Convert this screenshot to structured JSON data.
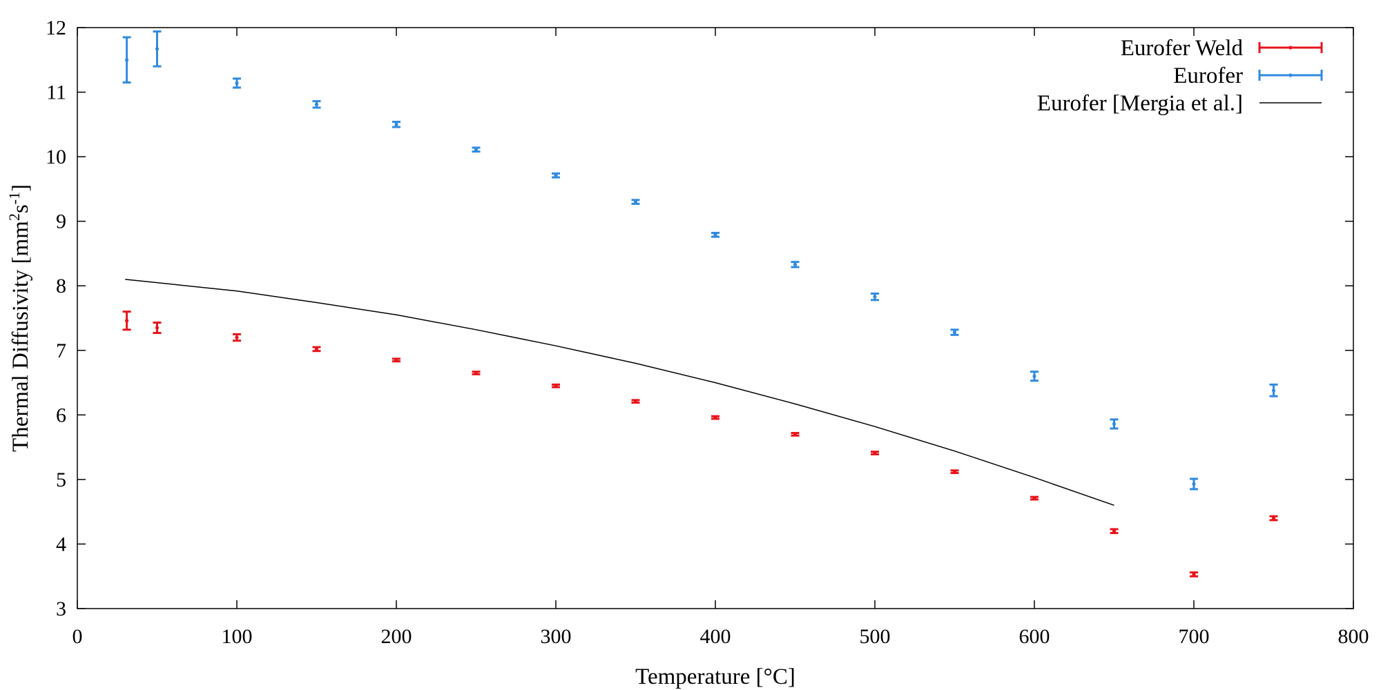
{
  "chart_data": {
    "type": "scatter",
    "xlabel": "Temperature [°C]",
    "ylabel": {
      "prefix": "Thermal Diffusivity [mm",
      "sup1": "2",
      "mid": "s",
      "sup2": "-1",
      "suffix": "]"
    },
    "xlim": [
      0,
      800
    ],
    "ylim": [
      3,
      12
    ],
    "x_ticks": [
      0,
      100,
      200,
      300,
      400,
      500,
      600,
      700,
      800
    ],
    "y_ticks": [
      3,
      4,
      5,
      6,
      7,
      8,
      9,
      10,
      11,
      12
    ],
    "grid": false,
    "legend_position": "top-right",
    "series": [
      {
        "name": "Eurofer Weld",
        "style": "points-errorbars",
        "color": "#e8141b",
        "x": [
          31,
          50,
          100,
          150,
          200,
          250,
          300,
          350,
          400,
          450,
          500,
          550,
          600,
          650,
          700,
          750
        ],
        "y": [
          7.46,
          7.35,
          7.2,
          7.02,
          6.85,
          6.65,
          6.45,
          6.21,
          5.96,
          5.7,
          5.41,
          5.12,
          4.71,
          4.2,
          3.53,
          4.4
        ],
        "err": [
          0.14,
          0.08,
          0.05,
          0.03,
          0.02,
          0.02,
          0.02,
          0.02,
          0.02,
          0.02,
          0.02,
          0.02,
          0.02,
          0.03,
          0.03,
          0.03
        ]
      },
      {
        "name": "Eurofer",
        "style": "points-errorbars",
        "color": "#2f8ae0",
        "x": [
          31,
          50,
          100,
          150,
          200,
          250,
          300,
          350,
          400,
          450,
          500,
          550,
          600,
          650,
          700,
          750
        ],
        "y": [
          11.5,
          11.67,
          11.14,
          10.81,
          10.5,
          10.11,
          9.71,
          9.3,
          8.79,
          8.33,
          7.83,
          7.28,
          6.6,
          5.86,
          4.93,
          6.38
        ],
        "err": [
          0.35,
          0.27,
          0.07,
          0.05,
          0.04,
          0.03,
          0.03,
          0.03,
          0.03,
          0.04,
          0.05,
          0.04,
          0.07,
          0.07,
          0.08,
          0.09
        ]
      },
      {
        "name": "Eurofer [Mergia et al.]",
        "style": "line",
        "color": "#000000",
        "x": [
          30,
          100,
          150,
          200,
          250,
          300,
          350,
          400,
          450,
          500,
          550,
          600,
          650
        ],
        "y": [
          8.1,
          7.92,
          7.74,
          7.55,
          7.32,
          7.07,
          6.8,
          6.5,
          6.17,
          5.82,
          5.44,
          5.03,
          4.6
        ]
      }
    ]
  }
}
